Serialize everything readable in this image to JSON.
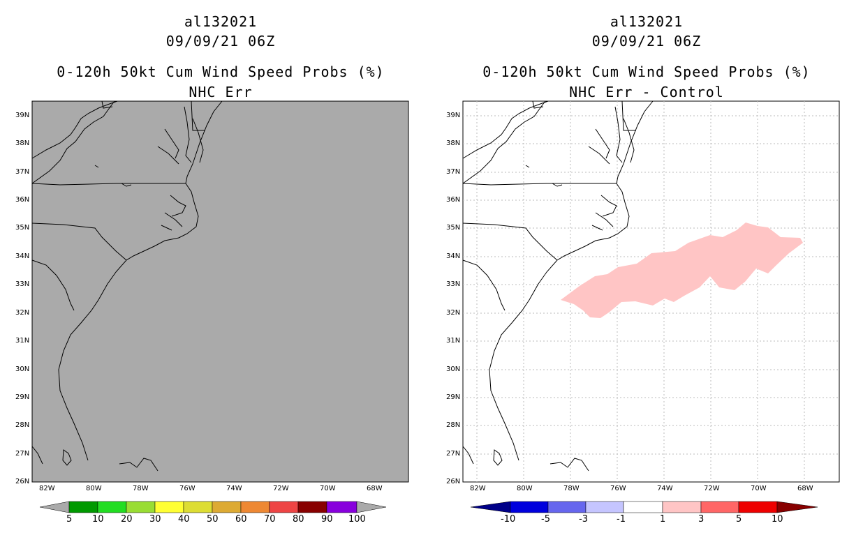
{
  "left": {
    "storm_id": "al132021",
    "datetime": "09/09/21 06Z",
    "product": "0-120h 50kt Cum Wind Speed Probs (%)",
    "subtitle": "NHC Err",
    "background_color": "#aaaaaa",
    "colorbar": {
      "colors": [
        "#009900",
        "#22dd22",
        "#99dd33",
        "#ffff33",
        "#dddd33",
        "#ddaa33",
        "#ee8833",
        "#ee4444",
        "#880000",
        "#8800dd"
      ],
      "labels": [
        "5",
        "10",
        "20",
        "30",
        "40",
        "50",
        "60",
        "70",
        "80",
        "90",
        "100"
      ],
      "end_color": "#aaaaaa"
    }
  },
  "right": {
    "storm_id": "al132021",
    "datetime": "09/09/21 06Z",
    "product": "0-120h 50kt Cum Wind Speed Probs (%)",
    "subtitle": "NHC Err - Control",
    "background_color": "#ffffff",
    "shade_color": "#ffc5c5",
    "colorbar": {
      "colors": [
        "#0000dd",
        "#6666ee",
        "#c5c5ff",
        "#ffffff",
        "#ffc5c5",
        "#ff6666",
        "#ee0000"
      ],
      "labels": [
        "-10",
        "-5",
        "-3",
        "-1",
        "1",
        "3",
        "5",
        "10"
      ],
      "start_color": "#000088",
      "end_color": "#880000"
    }
  },
  "axes": {
    "lat_labels": [
      "39N",
      "38N",
      "37N",
      "36N",
      "35N",
      "34N",
      "33N",
      "32N",
      "31N",
      "30N",
      "29N",
      "28N",
      "27N",
      "26N"
    ],
    "lon_labels": [
      "82W",
      "80W",
      "78W",
      "76W",
      "74W",
      "72W",
      "70W",
      "68W"
    ],
    "lat_range": [
      26,
      39.5
    ],
    "lon_range": [
      -82.5,
      -66.5
    ]
  }
}
